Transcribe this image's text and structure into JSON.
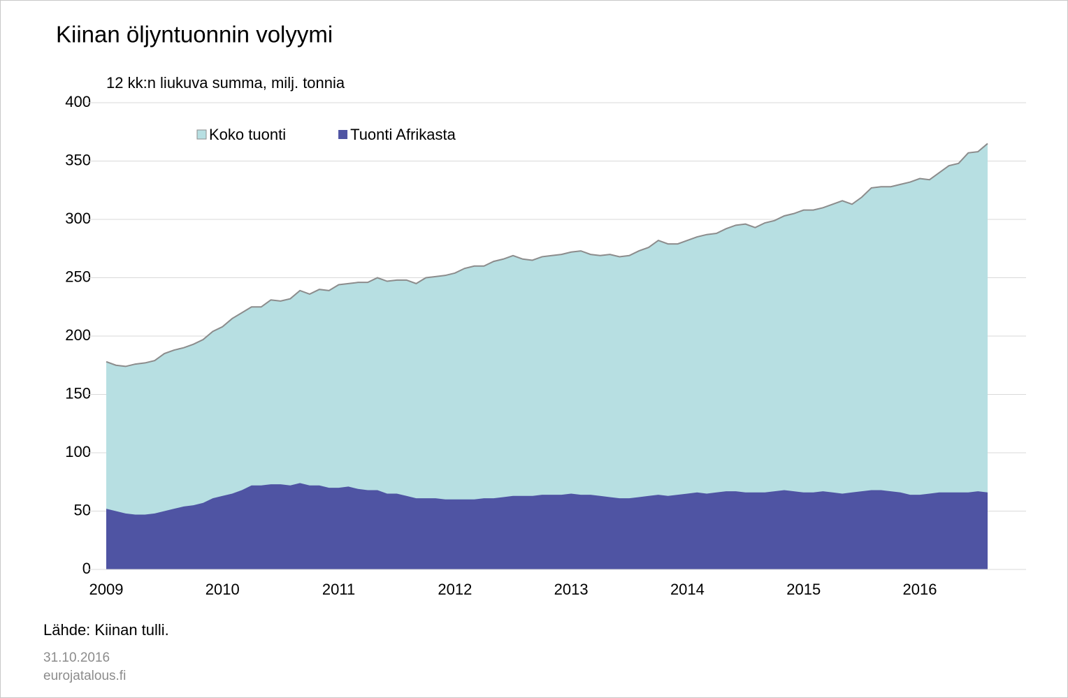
{
  "chart_data": {
    "type": "area",
    "title": "Kiinan öljyntuonnin volyymi",
    "subtitle": "12 kk:n liukuva summa, milj. tonnia",
    "categories": [
      "2009",
      null,
      null,
      null,
      null,
      null,
      null,
      null,
      null,
      null,
      null,
      null,
      "2010",
      null,
      null,
      null,
      null,
      null,
      null,
      null,
      null,
      null,
      null,
      null,
      "2011",
      null,
      null,
      null,
      null,
      null,
      null,
      null,
      null,
      null,
      null,
      null,
      "2012",
      null,
      null,
      null,
      null,
      null,
      null,
      null,
      null,
      null,
      null,
      null,
      "2013",
      null,
      null,
      null,
      null,
      null,
      null,
      null,
      null,
      null,
      null,
      null,
      "2014",
      null,
      null,
      null,
      null,
      null,
      null,
      null,
      null,
      null,
      null,
      null,
      "2015",
      null,
      null,
      null,
      null,
      null,
      null,
      null,
      null,
      null,
      null,
      null,
      "2016",
      null,
      null,
      null,
      null,
      null,
      null,
      null
    ],
    "series": [
      {
        "name": "Koko tuonti",
        "color": "#b7dfe2",
        "line_color": "#8c8c8c",
        "values": [
          178,
          175,
          174,
          176,
          177,
          179,
          185,
          188,
          190,
          193,
          197,
          204,
          208,
          215,
          220,
          225,
          225,
          231,
          230,
          232,
          239,
          236,
          240,
          239,
          244,
          245,
          246,
          246,
          250,
          247,
          248,
          248,
          245,
          250,
          251,
          252,
          254,
          258,
          260,
          260,
          264,
          266,
          269,
          266,
          265,
          268,
          269,
          270,
          272,
          273,
          270,
          269,
          270,
          268,
          269,
          273,
          276,
          282,
          279,
          279,
          282,
          285,
          287,
          288,
          292,
          295,
          296,
          293,
          297,
          299,
          303,
          305,
          308,
          308,
          310,
          313,
          316,
          313,
          319,
          327,
          328,
          328,
          330,
          332,
          335,
          334,
          340,
          346,
          348,
          357,
          358,
          365
        ]
      },
      {
        "name": "Tuonti Afrikasta",
        "color": "#4f54a3",
        "values": [
          52,
          50,
          48,
          47,
          47,
          48,
          50,
          52,
          54,
          55,
          57,
          61,
          63,
          65,
          68,
          72,
          72,
          73,
          73,
          72,
          74,
          72,
          72,
          70,
          70,
          71,
          69,
          68,
          68,
          65,
          65,
          63,
          61,
          61,
          61,
          60,
          60,
          60,
          60,
          61,
          61,
          62,
          63,
          63,
          63,
          64,
          64,
          64,
          65,
          64,
          64,
          63,
          62,
          61,
          61,
          62,
          63,
          64,
          63,
          64,
          65,
          66,
          65,
          66,
          67,
          67,
          66,
          66,
          66,
          67,
          68,
          67,
          66,
          66,
          67,
          66,
          65,
          66,
          67,
          68,
          68,
          67,
          66,
          64,
          64,
          65,
          66,
          66,
          66,
          66,
          67,
          66
        ]
      }
    ],
    "ylim": [
      0,
      400
    ],
    "yticks": [
      0,
      50,
      100,
      150,
      200,
      250,
      300,
      350,
      400
    ],
    "grid": true,
    "legend": "upper-left"
  },
  "footer": {
    "source": "Lähde: Kiinan tulli.",
    "date": "31.10.2016",
    "site": "eurojatalous.fi"
  }
}
